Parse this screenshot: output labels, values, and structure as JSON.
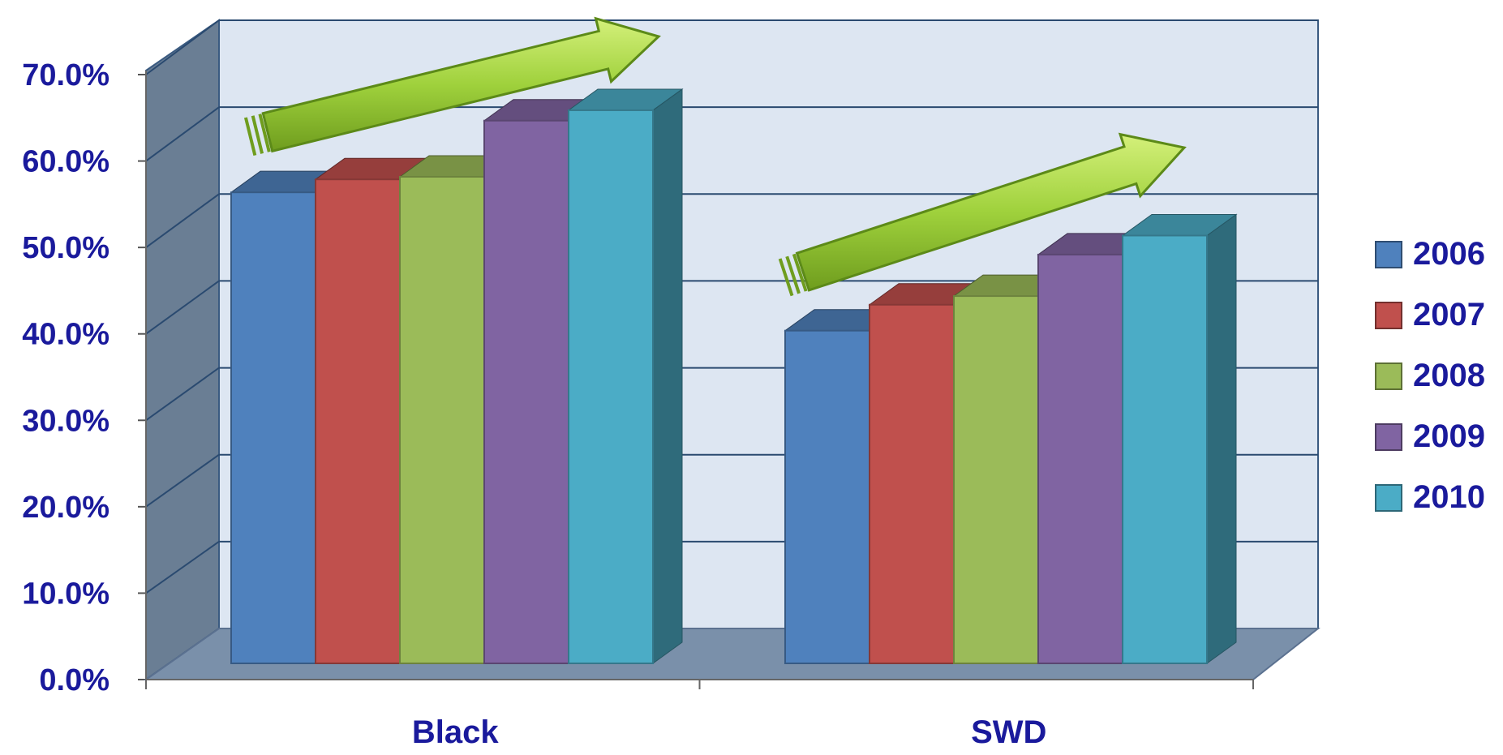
{
  "chart_data": {
    "type": "bar",
    "categories": [
      "Black",
      "SWD"
    ],
    "series": [
      {
        "name": "2006",
        "values": [
          54.5,
          38.5
        ]
      },
      {
        "name": "2007",
        "values": [
          56.0,
          41.5
        ]
      },
      {
        "name": "2008",
        "values": [
          56.3,
          42.5
        ]
      },
      {
        "name": "2009",
        "values": [
          62.8,
          47.3
        ]
      },
      {
        "name": "2010",
        "values": [
          64.0,
          49.5
        ]
      }
    ],
    "ylim": [
      0,
      70
    ],
    "yticks": [
      "0.0%",
      "10.0%",
      "20.0%",
      "30.0%",
      "40.0%",
      "50.0%",
      "60.0%",
      "70.0%"
    ],
    "title": "",
    "xlabel": "",
    "ylabel": "",
    "grid": true,
    "legend_position": "right",
    "three_d": true,
    "annotations": [
      "upward-trend-arrow",
      "upward-trend-arrow"
    ],
    "colors": {
      "series": [
        "#4f81bd",
        "#c0504d",
        "#9bbb59",
        "#8064a2",
        "#4bacc6"
      ],
      "text": "#1a1a9c",
      "back_wall": "#dde6f2",
      "side_wall": "#6a7e94",
      "floor": "#7a90aa",
      "arrow": "#9fd13c"
    }
  }
}
